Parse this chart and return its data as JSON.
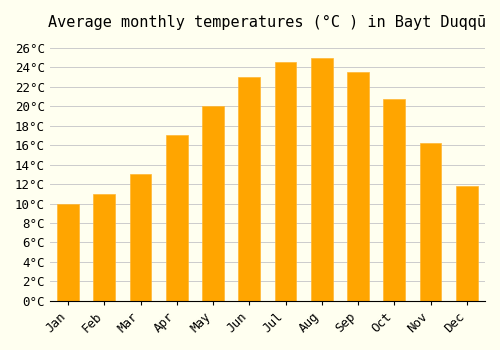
{
  "title": "Average monthly temperatures (°C ) in Bayt Duqqū",
  "months": [
    "Jan",
    "Feb",
    "Mar",
    "Apr",
    "May",
    "Jun",
    "Jul",
    "Aug",
    "Sep",
    "Oct",
    "Nov",
    "Dec"
  ],
  "values": [
    10.0,
    11.0,
    13.0,
    17.0,
    20.0,
    23.0,
    24.5,
    25.0,
    23.5,
    20.7,
    16.2,
    11.8
  ],
  "bar_color": "#FFA500",
  "bar_edge_color": "#FFB733",
  "background_color": "#FFFFF0",
  "ylim": [
    0,
    27
  ],
  "yticks": [
    0,
    2,
    4,
    6,
    8,
    10,
    12,
    14,
    16,
    18,
    20,
    22,
    24,
    26
  ],
  "grid_color": "#cccccc",
  "title_fontsize": 11,
  "tick_fontsize": 9
}
